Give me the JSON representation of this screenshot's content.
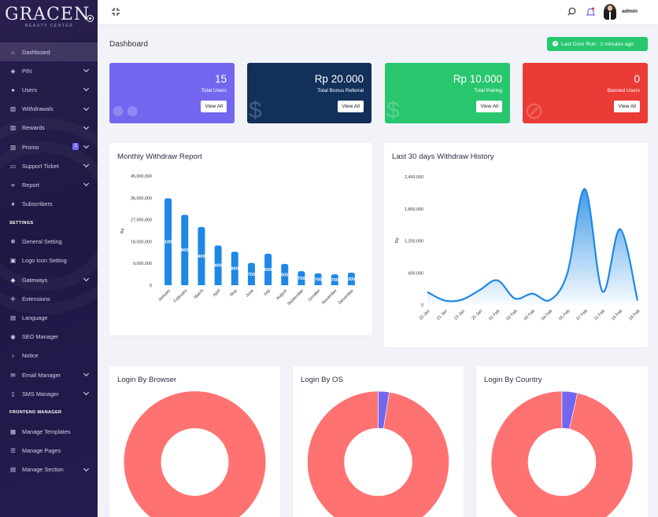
{
  "sidebar": {
    "brand": "GRACEN",
    "brand_sub": "BEAUTY CENTER",
    "items": [
      {
        "label": "Dashboard",
        "icon": "home-icon",
        "glyph": "⌂",
        "chevron": false,
        "active": true
      },
      {
        "label": "PIN",
        "icon": "tag-icon",
        "glyph": "◈",
        "chevron": true
      },
      {
        "label": "Users",
        "icon": "users-icon",
        "glyph": "●",
        "chevron": true
      },
      {
        "label": "Withdrawals",
        "icon": "bank-icon",
        "glyph": "▥",
        "chevron": true
      },
      {
        "label": "Rewards",
        "icon": "trophy-icon",
        "glyph": "▥",
        "chevron": true
      },
      {
        "label": "Promo",
        "icon": "bank-icon",
        "glyph": "▥",
        "chevron": true,
        "badge": "1"
      },
      {
        "label": "Support Ticket",
        "icon": "ticket-icon",
        "glyph": "▭",
        "chevron": true
      },
      {
        "label": "Report",
        "icon": "list-icon",
        "glyph": "≡",
        "chevron": true
      },
      {
        "label": "Subscribers",
        "icon": "thumbs-up-icon",
        "glyph": "♦",
        "chevron": false
      }
    ],
    "settings_title": "SETTINGS",
    "settings_items": [
      {
        "label": "General Setting",
        "icon": "gear-icon",
        "glyph": "✻",
        "chevron": false
      },
      {
        "label": "Logo Icon Setting",
        "icon": "image-icon",
        "glyph": "▣",
        "chevron": false
      },
      {
        "label": "Gateways",
        "icon": "credit-card-icon",
        "glyph": "◆",
        "chevron": true
      },
      {
        "label": "Extensions",
        "icon": "puzzle-icon",
        "glyph": "✢",
        "chevron": false
      },
      {
        "label": "Language",
        "icon": "language-icon",
        "glyph": "▤",
        "chevron": false
      },
      {
        "label": "SEO Manager",
        "icon": "globe-icon",
        "glyph": "◉",
        "chevron": false
      },
      {
        "label": "Notice",
        "icon": "bell-icon",
        "glyph": "♪",
        "chevron": false
      },
      {
        "label": "Email Manager",
        "icon": "envelope-icon",
        "glyph": "✉",
        "chevron": true
      },
      {
        "label": "SMS Manager",
        "icon": "mobile-icon",
        "glyph": "▯",
        "chevron": true
      }
    ],
    "frontend_title": "FRONTEND MANAGER",
    "frontend_items": [
      {
        "label": "Manage Templates",
        "icon": "templates-icon",
        "glyph": "▦",
        "chevron": false
      },
      {
        "label": "Manage Pages",
        "icon": "pages-icon",
        "glyph": "☰",
        "chevron": false
      },
      {
        "label": "Manage Section",
        "icon": "section-icon",
        "glyph": "▤",
        "chevron": true
      }
    ]
  },
  "topbar": {
    "admin_name": "admin"
  },
  "header": {
    "title": "Dashboard",
    "cron_label": "Last Cron Run : 2 minutes ago"
  },
  "stats": [
    {
      "value": "15",
      "label": "Total Users",
      "button": "View All",
      "color": "#7367f0",
      "icon": "users-icon",
      "glyph": "●●"
    },
    {
      "value": "Rp 20.000",
      "label": "Total Bonus Referral",
      "button": "View All",
      "color": "#12305a",
      "icon": "money-hand-icon",
      "glyph": "$"
    },
    {
      "value": "Rp 10.000",
      "label": "Total Pairing",
      "button": "View All",
      "color": "#28c76f",
      "icon": "money-hand-icon",
      "glyph": "$"
    },
    {
      "value": "0",
      "label": "Banned Users",
      "button": "View All",
      "color": "#ea3b36",
      "icon": "ban-icon",
      "glyph": "⊘"
    }
  ],
  "monthly": {
    "title": "Monthly Withdraw Report",
    "chart_data": {
      "type": "bar",
      "ylabel": "Rp",
      "ylim": [
        0,
        45000000
      ],
      "yticks": [
        0,
        9000000,
        18000000,
        27000000,
        36000000,
        45000000
      ],
      "ytick_labels": [
        "0",
        "9,000,000",
        "18,000,000",
        "27,000,000",
        "36,000,000",
        "45,000,000"
      ],
      "categories": [
        "January",
        "February",
        "March",
        "April",
        "May",
        "June",
        "July",
        "August",
        "September",
        "October",
        "November",
        "December"
      ],
      "values": [
        35800000,
        29000000,
        24000000,
        16400000,
        13800000,
        9200000,
        13000000,
        8800000,
        5800000,
        4900000,
        4500000,
        5200000
      ],
      "data_labels": [
        "100",
        "800",
        "400",
        "400",
        "800",
        "700",
        "600",
        "500",
        "700",
        "700",
        "700",
        "300"
      ],
      "color": "#1e88e5"
    }
  },
  "history": {
    "title": "Last 30 days Withdraw History",
    "chart_data": {
      "type": "area",
      "ylabel": "Rp",
      "ylim": [
        0,
        2400000
      ],
      "yticks": [
        0,
        600000,
        1200000,
        1800000,
        2400000
      ],
      "ytick_labels": [
        "0",
        "600,000",
        "1,200,000",
        "1,800,000",
        "2,400,000"
      ],
      "x": [
        "20 Jan",
        "21 Jan",
        "23 Jan",
        "25 Jan",
        "01 Feb",
        "02 Feb",
        "03 Feb",
        "04 Feb",
        "05 Feb",
        "07 Feb",
        "11 Feb",
        "16 Feb",
        "18 Feb"
      ],
      "values": [
        240000,
        80000,
        100000,
        280000,
        460000,
        120000,
        210000,
        90000,
        600000,
        2170000,
        250000,
        1420000,
        80000
      ],
      "color": "#1e88e5"
    }
  },
  "donuts": [
    {
      "title": "Login By Browser",
      "chart_data": {
        "type": "pie",
        "slices": [
          {
            "value": 100,
            "color": "#ff7272"
          }
        ]
      }
    },
    {
      "title": "Login By OS",
      "chart_data": {
        "type": "pie",
        "slices": [
          {
            "value": 97.5,
            "color": "#ff7272"
          },
          {
            "value": 2.5,
            "color": "#7367f0"
          }
        ]
      }
    },
    {
      "title": "Login By Country",
      "chart_data": {
        "type": "pie",
        "slices": [
          {
            "value": 96.5,
            "color": "#ff7272"
          },
          {
            "value": 3.5,
            "color": "#7367f0"
          }
        ]
      }
    }
  ]
}
